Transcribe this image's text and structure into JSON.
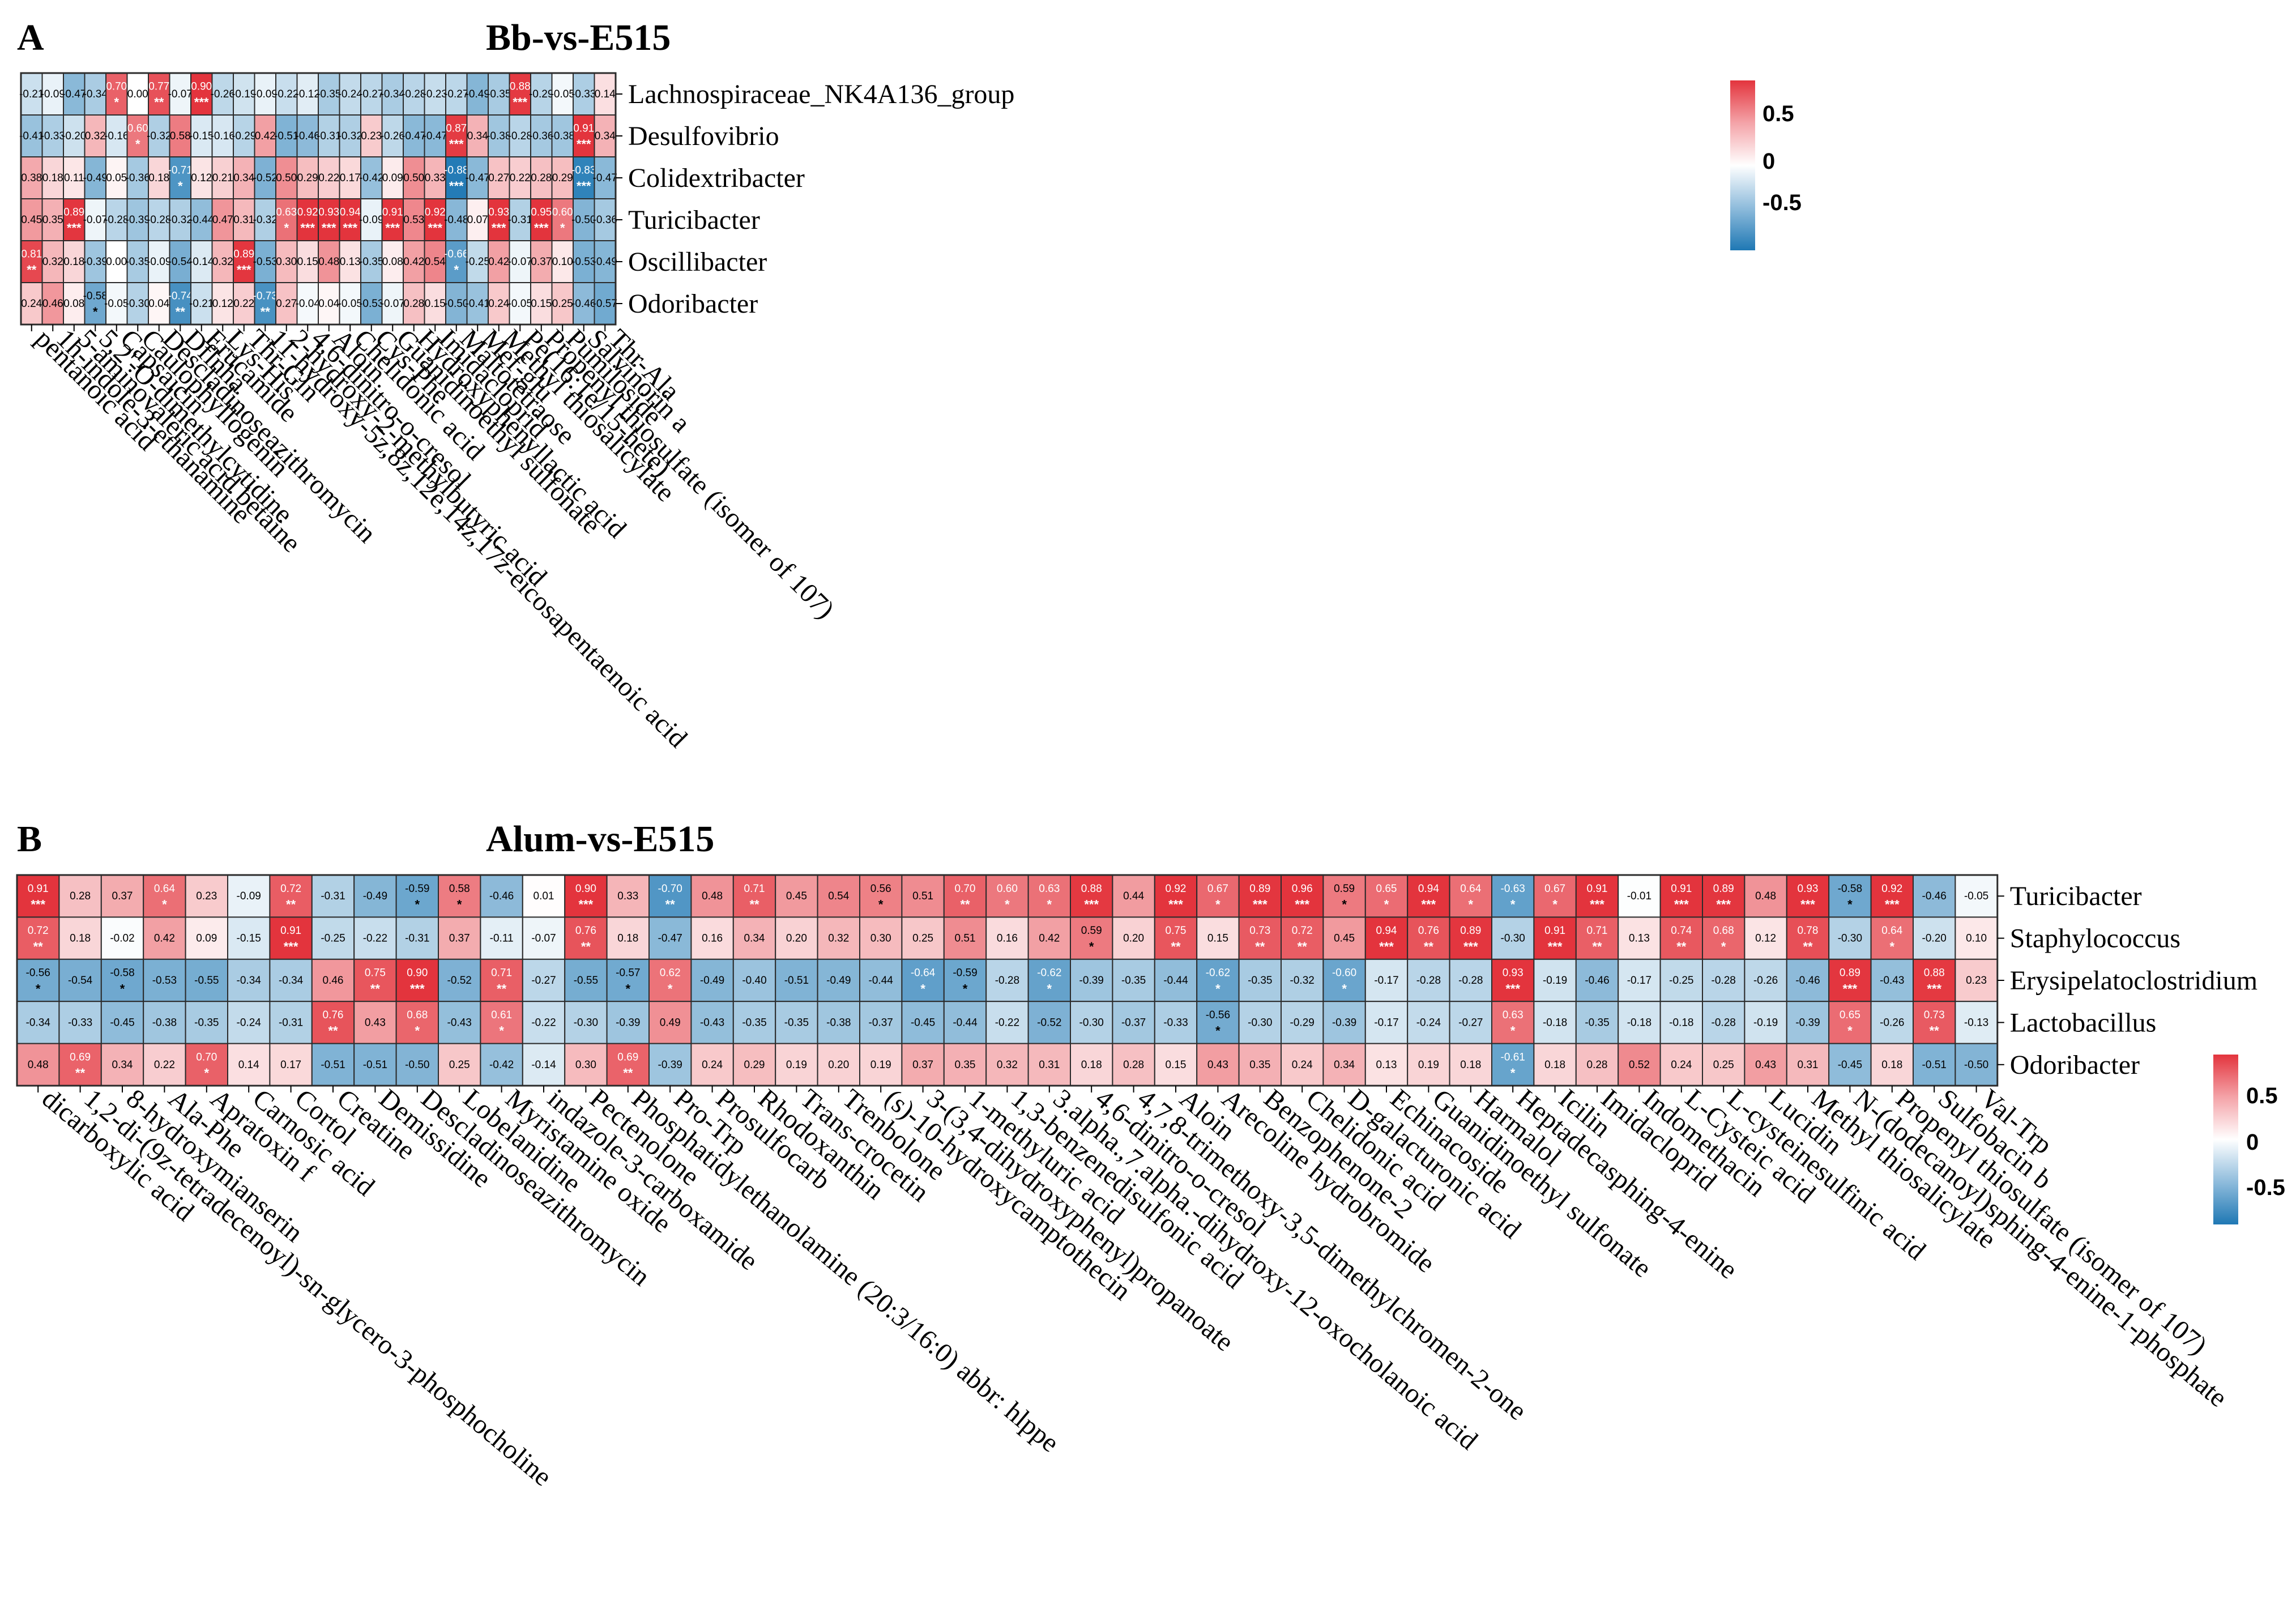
{
  "colors": {
    "neg": "#1f78b4",
    "mid": "#ffffff",
    "pos": "#e3343d",
    "grid": "#2b2b2b",
    "text": "#000000"
  },
  "chart_data": [
    {
      "type": "heatmap",
      "label": "A",
      "title": "Bb-vs-E515",
      "rows": [
        "Lachnospiraceae_NK4A136_group",
        "Desulfovibrio",
        "Colidextribacter",
        "Turicibacter",
        "Oscillibacter",
        "Odoribacter"
      ],
      "columns": [
        "pentanoic acid",
        "1h-indole-3-ethanamine",
        "5-aminovaleric acid betaine",
        "5,2'-O-dimethylcytidine",
        "Capsaicin",
        "Caulophyllogenin",
        "Descladinoseazithromycin",
        "Dflnha",
        "Erucamide",
        "Lys-His",
        "Thr-Gln",
        "11-hydroxy-5z,8z,12e,14z,17z-eicosapentaenoic acid",
        "2-hydroxy-2-methylbutyric acid",
        "4,6-dinitro-o-cresol",
        "Aloin",
        "Chelidonic acid",
        "Cys-Phe",
        "Guanidinoethyl sulfonate",
        "Hydroxyphenyllactic acid",
        "Imidacloprid",
        "Maltotetraose",
        "Mef-glu",
        "Methyl thiosalicylate",
        "Pe(16:1e/15-hete)",
        "Propenyl thiosulfate (isomer of 107)",
        "Pumiloside",
        "Salvinorin a",
        "Thr-Ala"
      ],
      "values": [
        [
          -0.21,
          -0.09,
          -0.47,
          -0.34,
          0.7,
          -0.0,
          0.77,
          -0.07,
          0.9,
          -0.26,
          -0.19,
          -0.09,
          -0.22,
          -0.12,
          -0.35,
          -0.24,
          -0.27,
          -0.34,
          -0.28,
          -0.23,
          -0.27,
          -0.49,
          -0.35,
          0.88,
          -0.29,
          -0.05,
          -0.33,
          0.14
        ],
        [
          -0.41,
          -0.33,
          -0.2,
          0.32,
          -0.16,
          0.6,
          -0.32,
          0.58,
          -0.15,
          -0.16,
          -0.29,
          0.42,
          -0.51,
          -0.46,
          -0.31,
          -0.32,
          0.23,
          -0.26,
          -0.47,
          -0.47,
          0.87,
          0.34,
          -0.38,
          -0.28,
          -0.36,
          -0.38,
          0.91,
          0.34
        ],
        [
          0.38,
          0.18,
          0.11,
          -0.49,
          0.05,
          -0.36,
          0.18,
          -0.71,
          0.12,
          0.21,
          0.34,
          -0.52,
          0.5,
          0.29,
          0.22,
          0.17,
          -0.42,
          0.09,
          0.5,
          0.33,
          -0.88,
          -0.47,
          0.27,
          0.22,
          0.28,
          0.29,
          -0.83,
          -0.47
        ],
        [
          0.45,
          0.35,
          0.89,
          -0.07,
          -0.28,
          -0.39,
          -0.28,
          -0.32,
          -0.44,
          0.47,
          0.31,
          -0.32,
          0.63,
          0.92,
          0.93,
          0.94,
          -0.09,
          0.91,
          0.53,
          0.92,
          -0.48,
          0.07,
          0.93,
          -0.31,
          0.95,
          0.6,
          -0.5,
          -0.36
        ],
        [
          0.81,
          0.32,
          0.18,
          -0.39,
          -0.0,
          -0.35,
          -0.09,
          -0.54,
          -0.14,
          0.32,
          0.89,
          -0.53,
          0.3,
          0.15,
          0.48,
          0.13,
          -0.35,
          0.08,
          0.42,
          0.54,
          -0.66,
          -0.25,
          0.42,
          -0.07,
          0.37,
          0.1,
          -0.53,
          -0.49
        ],
        [
          0.24,
          0.46,
          0.08,
          -0.58,
          -0.05,
          -0.3,
          0.04,
          -0.74,
          -0.21,
          0.12,
          0.22,
          -0.73,
          0.27,
          -0.04,
          0.04,
          -0.05,
          -0.53,
          -0.07,
          0.28,
          0.15,
          -0.5,
          -0.41,
          0.24,
          -0.05,
          0.15,
          0.25,
          -0.46,
          -0.57
        ]
      ],
      "stars": [
        [
          "",
          "",
          "",
          "",
          "*",
          "",
          "**",
          "",
          "***",
          "",
          "",
          "",
          "",
          "",
          "",
          "",
          "",
          "",
          "",
          "",
          "",
          "",
          "",
          "***",
          "",
          "",
          "",
          ""
        ],
        [
          "",
          "",
          "",
          "",
          "",
          "*",
          "",
          "",
          "",
          "",
          "",
          "",
          "",
          "",
          "",
          "",
          "",
          "",
          "",
          "",
          "***",
          "",
          "",
          "",
          "",
          "",
          "***",
          ""
        ],
        [
          "",
          "",
          "",
          "",
          "",
          "",
          "",
          "*",
          "",
          "",
          "",
          "",
          "",
          "",
          "",
          "",
          "",
          "",
          "",
          "",
          "***",
          "",
          "",
          "",
          "",
          "",
          "***",
          ""
        ],
        [
          "",
          "",
          "***",
          "",
          "",
          "",
          "",
          "",
          "",
          "",
          "",
          "",
          "*",
          "***",
          "***",
          "***",
          "",
          "***",
          "",
          "***",
          "",
          "",
          "***",
          "",
          "***",
          "*",
          "",
          ""
        ],
        [
          "**",
          "",
          "",
          "",
          "",
          "",
          "",
          "",
          "",
          "",
          "***",
          "",
          "",
          "",
          "",
          "",
          "",
          "",
          "",
          "",
          "*",
          "",
          "",
          "",
          "",
          "",
          "",
          ""
        ],
        [
          "",
          "",
          "",
          "*",
          "",
          "",
          "",
          "**",
          "",
          "",
          "",
          "**",
          "",
          "",
          "",
          "",
          "",
          "",
          "",
          "",
          "",
          "",
          "",
          "",
          "",
          "",
          "",
          ""
        ]
      ],
      "colorbar": {
        "ticks": [
          0.5,
          0,
          -0.5
        ],
        "labels": [
          "0.5",
          "0",
          "-0.5"
        ]
      }
    },
    {
      "type": "heatmap",
      "label": "B",
      "title": "Alum-vs-E515",
      "rows": [
        "Turicibacter",
        "Staphylococcus",
        "Erysipelatoclostridium",
        "Lactobacillus",
        "Odoribacter"
      ],
      "columns": [
        "dicarboxylic acid",
        "1,2-di-(9z-tetradecenoyl)-sn-glycero-3-phosphocholine",
        "8-hydroxymianserin",
        "Ala-Phe",
        "Apratoxin f",
        "Carnosic acid",
        "Cortol",
        "Creatine",
        "Demissidine",
        "Descladinoseazithromycin",
        "Lobelanidine",
        "Myristamine oxide",
        "indazole-3-carboxamide",
        "Pectenolone",
        "Phosphatidylethanolamine (20:3/16:0) abbr: hlppe",
        "Pro-Trp",
        "Prosulfocarb",
        "Rhodoxanthin",
        "Trans-crocetin",
        "Trenbolone",
        "(s)-10-hydroxycamptothecin",
        "3-(3,4-dihydroxyphenyl)propanoate",
        "1-methyluric acid",
        "1,3-benzenedisulfonic acid",
        "3.alpha.,7.alpha.-dihydroxy-12-oxocholanoic acid",
        "4,6-dinitro-o-cresol",
        "4,7,8-trimethoxy-3,5-dimethylchromen-2-one",
        "Aloin",
        "Arecoline hydrobromide",
        "Benzophenone-2",
        "Chelidonic acid",
        "D-galacturonic acid",
        "Echinacoside",
        "Guanidinoethyl sulfonate",
        "Harmalol",
        "Heptadecasphing-4-enine",
        "Icilin",
        "Imidacloprid",
        "Indomethacin",
        "L-Cysteic acid",
        "L-cysteinesulfinic acid",
        "Lucidin",
        "Methyl thiosalicylate",
        "N-(dodecanoyl)sphing-4-enine-1-phosphate",
        "Propenyl thiosulfate (isomer of 107)",
        "Sulfobacin b",
        "Val-Trp"
      ],
      "values": [
        [
          0.91,
          0.28,
          0.37,
          0.64,
          0.23,
          -0.09,
          0.72,
          -0.31,
          -0.49,
          -0.59,
          0.58,
          -0.46,
          0.01,
          0.9,
          0.33,
          -0.7,
          0.48,
          0.71,
          0.45,
          0.54,
          0.56,
          0.51,
          0.7,
          0.6,
          0.63,
          0.88,
          0.44,
          0.92,
          0.67,
          0.89,
          0.96,
          0.59,
          0.65,
          0.94,
          0.64,
          -0.63,
          0.67,
          0.91,
          -0.01,
          0.91,
          0.89,
          0.48,
          0.93,
          -0.58,
          0.92,
          -0.46,
          -0.05
        ],
        [
          0.72,
          0.18,
          -0.02,
          0.42,
          0.09,
          -0.15,
          0.91,
          -0.25,
          -0.22,
          -0.31,
          0.37,
          -0.11,
          -0.07,
          0.76,
          0.18,
          -0.47,
          0.16,
          0.34,
          0.2,
          0.32,
          0.3,
          0.25,
          0.51,
          0.16,
          0.42,
          0.59,
          0.2,
          0.75,
          0.15,
          0.73,
          0.72,
          0.45,
          0.94,
          0.76,
          0.89,
          -0.3,
          0.91,
          0.71,
          0.13,
          0.74,
          0.68,
          0.12,
          0.78,
          -0.3,
          0.64,
          -0.2,
          0.1
        ],
        [
          -0.56,
          -0.54,
          -0.58,
          -0.53,
          -0.55,
          -0.34,
          -0.34,
          0.46,
          0.75,
          0.9,
          -0.52,
          0.71,
          -0.27,
          -0.55,
          -0.57,
          0.62,
          -0.49,
          -0.4,
          -0.51,
          -0.49,
          -0.44,
          -0.64,
          -0.59,
          -0.28,
          -0.62,
          -0.39,
          -0.35,
          -0.44,
          -0.62,
          -0.35,
          -0.32,
          -0.6,
          -0.17,
          -0.28,
          -0.28,
          0.93,
          -0.19,
          -0.46,
          -0.17,
          -0.25,
          -0.28,
          -0.26,
          -0.46,
          0.89,
          -0.43,
          0.88,
          0.23
        ],
        [
          -0.34,
          -0.33,
          -0.45,
          -0.38,
          -0.35,
          -0.24,
          -0.31,
          0.76,
          0.43,
          0.68,
          -0.43,
          0.61,
          -0.22,
          -0.3,
          -0.39,
          0.49,
          -0.43,
          -0.35,
          -0.35,
          -0.38,
          -0.37,
          -0.45,
          -0.44,
          -0.22,
          -0.52,
          -0.3,
          -0.37,
          -0.33,
          -0.56,
          -0.3,
          -0.29,
          -0.39,
          -0.17,
          -0.24,
          -0.27,
          0.63,
          -0.18,
          -0.35,
          -0.18,
          -0.18,
          -0.28,
          -0.19,
          -0.39,
          0.65,
          -0.26,
          0.73,
          -0.13
        ],
        [
          0.48,
          0.69,
          0.34,
          0.22,
          0.7,
          0.14,
          0.17,
          -0.51,
          -0.51,
          -0.5,
          0.25,
          -0.42,
          -0.14,
          0.3,
          0.69,
          -0.39,
          0.24,
          0.29,
          0.19,
          0.2,
          0.19,
          0.37,
          0.35,
          0.32,
          0.31,
          0.18,
          0.28,
          0.15,
          0.43,
          0.35,
          0.24,
          0.34,
          0.13,
          0.19,
          0.18,
          -0.61,
          0.18,
          0.28,
          0.52,
          0.24,
          0.25,
          0.43,
          0.31,
          -0.45,
          0.18,
          -0.51,
          -0.5
        ]
      ],
      "stars": [
        [
          "***",
          "",
          "",
          "*",
          "",
          "",
          "**",
          "",
          "",
          "*",
          "*",
          "",
          "",
          "***",
          "",
          "**",
          "",
          "**",
          "",
          "",
          "*",
          "",
          "**",
          "*",
          "*",
          "***",
          "",
          "***",
          "*",
          "***",
          "***",
          "*",
          "*",
          "***",
          "*",
          "*",
          "*",
          "***",
          "",
          "***",
          "***",
          "",
          "***",
          "*",
          "***",
          "",
          ""
        ],
        [
          "**",
          "",
          "",
          "",
          "",
          "",
          "***",
          "",
          "",
          "",
          "",
          "",
          "",
          "**",
          "",
          "",
          "",
          "",
          "",
          "",
          "",
          "",
          "",
          "",
          "",
          "*",
          "",
          "**",
          "",
          "**",
          "**",
          "",
          "***",
          "**",
          "***",
          "",
          "***",
          "**",
          "",
          "**",
          "*",
          "",
          "**",
          "",
          "*",
          "",
          ""
        ],
        [
          "*",
          "",
          "*",
          "",
          "",
          "",
          "",
          "",
          "**",
          "***",
          "",
          "**",
          "",
          "",
          "*",
          "*",
          "",
          "",
          "",
          "",
          "",
          "*",
          "*",
          "",
          "*",
          "",
          "",
          "",
          "*",
          "",
          "",
          "*",
          "",
          "",
          "",
          "***",
          "",
          "",
          "",
          "",
          "",
          "",
          "",
          "***",
          "",
          "***",
          ""
        ],
        [
          "",
          "",
          "",
          "",
          "",
          "",
          "",
          "**",
          "",
          "*",
          "",
          "*",
          "",
          "",
          "",
          "",
          "",
          "",
          "",
          "",
          "",
          "",
          "",
          "",
          "",
          "",
          "",
          "",
          "*",
          "",
          "",
          "",
          "",
          "",
          "",
          "*",
          "",
          "",
          "",
          "",
          "",
          "",
          "",
          "*",
          "",
          "**",
          ""
        ],
        [
          "",
          "**",
          "",
          "",
          "*",
          "",
          "",
          "",
          "",
          "",
          "",
          "",
          "",
          "",
          "**",
          "",
          "",
          "",
          "",
          "",
          "",
          "",
          "",
          "",
          "",
          "",
          "",
          "",
          "",
          "",
          "",
          "",
          "",
          "",
          "",
          "*",
          "",
          "",
          "",
          "",
          "",
          "",
          "",
          "",
          "",
          "",
          ""
        ]
      ],
      "colorbar": {
        "ticks": [
          0.5,
          0,
          -0.5
        ],
        "labels": [
          "0.5",
          "0",
          "-0.5"
        ]
      }
    }
  ]
}
